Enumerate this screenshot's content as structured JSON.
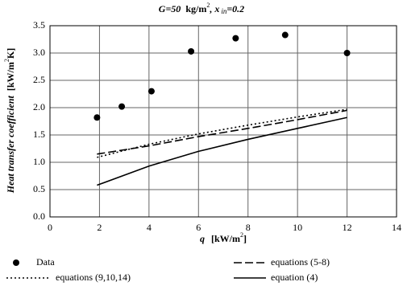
{
  "chart_data": {
    "type": "line",
    "title": [
      "G=50",
      "kg/m",
      "2",
      ", x",
      "in",
      "=0.2"
    ],
    "y_label": [
      "Heat transfer coefficient",
      "[kW/m",
      "2",
      "K]"
    ],
    "x_label": [
      "q",
      "[kW/m",
      "2",
      "]"
    ],
    "xlim": [
      0,
      14
    ],
    "xticks": [
      0,
      2,
      4,
      6,
      8,
      10,
      12,
      14
    ],
    "ylim": [
      0,
      3.5
    ],
    "yticks": [
      {
        "value": 0,
        "label": "0.0"
      },
      {
        "value": 0.5,
        "label": "0.5"
      },
      {
        "value": 1,
        "label": "1.0"
      },
      {
        "value": 1.5,
        "label": "1.5"
      },
      {
        "value": 2,
        "label": "2.0"
      },
      {
        "value": 2.5,
        "label": "2.5"
      },
      {
        "value": 3,
        "label": "3.0"
      },
      {
        "value": 3.5,
        "label": "3.5"
      }
    ],
    "grid": true,
    "series": [
      {
        "name": "Data",
        "color": "#000000",
        "style": "markers",
        "x": [
          1.9,
          2.9,
          4.1,
          5.7,
          7.5,
          9.5,
          12
        ],
        "values": [
          1.82,
          2.02,
          2.3,
          3.03,
          3.27,
          3.33,
          3.0
        ]
      },
      {
        "name": "equations (5-8)",
        "color": "#000000",
        "style": "dashed",
        "x": [
          1.9,
          4,
          6,
          8,
          10,
          12
        ],
        "values": [
          1.15,
          1.3,
          1.47,
          1.62,
          1.78,
          1.95
        ]
      },
      {
        "name": "equations (9,10,14)",
        "color": "#000000",
        "style": "dotted",
        "x": [
          1.9,
          4,
          6,
          8,
          10,
          12
        ],
        "values": [
          1.09,
          1.33,
          1.52,
          1.68,
          1.83,
          1.97
        ]
      },
      {
        "name": "equation (4)",
        "color": "#000000",
        "style": "solid",
        "x": [
          1.9,
          4,
          6,
          8,
          10,
          12
        ],
        "values": [
          0.58,
          0.93,
          1.2,
          1.42,
          1.62,
          1.82
        ]
      }
    ]
  }
}
